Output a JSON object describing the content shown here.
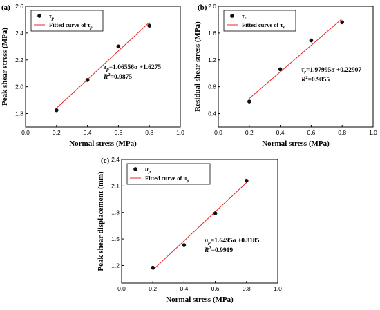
{
  "chart_data": [
    {
      "type": "scatter",
      "panel_label": "(a)",
      "xlabel": "Normal stress (MPa)",
      "ylabel": "Peak shear stress (MPa)",
      "xlim": [
        0.0,
        1.0
      ],
      "ylim": [
        1.7,
        2.6
      ],
      "xticks": [
        0.0,
        0.2,
        0.4,
        0.6,
        0.8,
        1.0
      ],
      "xtick_labels": [
        "0.0",
        "0.2",
        "0.4",
        "0.6",
        "0.8",
        "1.0"
      ],
      "yticks": [
        1.8,
        2.0,
        2.2,
        2.4,
        2.6
      ],
      "ytick_labels": [
        "1.8",
        "2.0",
        "2.2",
        "2.4",
        "2.6"
      ],
      "legend": {
        "placement": "top-left",
        "points_sym": "τ",
        "points_sub": "p",
        "fit_text": "Fitted curve of τ",
        "fit_sub": "p"
      },
      "annotation": {
        "sym": "τ",
        "sub": "p",
        "eq": "=1.06556σ +1.6275",
        "r2_prefix": "R",
        "r2_sup": "2",
        "r2_value": "=0.9875"
      },
      "series": [
        {
          "x": [
            0.2,
            0.4,
            0.6,
            0.8
          ],
          "y": [
            1.825,
            2.05,
            2.3,
            2.455
          ]
        }
      ],
      "fit": {
        "slope": 1.06556,
        "intercept": 1.6275,
        "x_range": [
          0.2,
          0.8
        ]
      }
    },
    {
      "type": "scatter",
      "panel_label": "(b)",
      "xlabel": "Normal stress (MPa)",
      "ylabel": "Residual shear stress (MPa)",
      "xlim": [
        0.0,
        1.0
      ],
      "ylim": [
        0.2,
        2.0
      ],
      "xticks": [
        0.0,
        0.2,
        0.4,
        0.6,
        0.8,
        1.0
      ],
      "xtick_labels": [
        "0.0",
        "0.2",
        "0.4",
        "0.6",
        "0.8",
        "1.0"
      ],
      "yticks": [
        0.4,
        0.8,
        1.2,
        1.6,
        2.0
      ],
      "ytick_labels": [
        "0.4",
        "0.8",
        "1.2",
        "1.6",
        "2.0"
      ],
      "legend": {
        "placement": "top-left",
        "points_sym": "τ",
        "points_sub": "r",
        "fit_text": "Fitted curve of τ",
        "fit_sub": "r"
      },
      "annotation": {
        "sym": "τ",
        "sub": "r",
        "eq": "=1.97995σ +0.22907",
        "r2_prefix": "R",
        "r2_sup": "2",
        "r2_value": "=0.9855"
      },
      "series": [
        {
          "x": [
            0.2,
            0.4,
            0.6,
            0.8
          ],
          "y": [
            0.58,
            1.06,
            1.49,
            1.76
          ]
        }
      ],
      "fit": {
        "slope": 1.97995,
        "intercept": 0.22907,
        "x_range": [
          0.2,
          0.8
        ]
      }
    },
    {
      "type": "scatter",
      "panel_label": "(c)",
      "xlabel": "Normal stress (MPa)",
      "ylabel": "Peak shear displacement (mm)",
      "xlim": [
        0.0,
        1.0
      ],
      "ylim": [
        1.0,
        2.4
      ],
      "xticks": [
        0.0,
        0.2,
        0.4,
        0.6,
        0.8,
        1.0
      ],
      "xtick_labels": [
        "0.0",
        "0.2",
        "0.4",
        "0.6",
        "0.8",
        "1.0"
      ],
      "yticks": [
        1.2,
        1.5,
        1.8,
        2.1,
        2.4
      ],
      "ytick_labels": [
        "1.2",
        "1.5",
        "1.8",
        "2.1",
        "2.4"
      ],
      "legend": {
        "placement": "top-left",
        "points_sym": "u",
        "points_sub": "p",
        "fit_text": "Fitted curve of u",
        "fit_sub": "p"
      },
      "annotation": {
        "sym": "u",
        "sub": "p",
        "eq": "=1.6495σ +0.8185",
        "r2_prefix": "R",
        "r2_sup": "2",
        "r2_value": "=0.9919"
      },
      "series": [
        {
          "x": [
            0.2,
            0.4,
            0.6,
            0.8
          ],
          "y": [
            1.175,
            1.43,
            1.79,
            2.16
          ]
        }
      ],
      "fit": {
        "slope": 1.6495,
        "intercept": 0.8185,
        "x_range": [
          0.2,
          0.8
        ]
      }
    }
  ],
  "colors": {
    "fit_line": "#e8252a",
    "points": "#111111",
    "axes": "#000000"
  }
}
